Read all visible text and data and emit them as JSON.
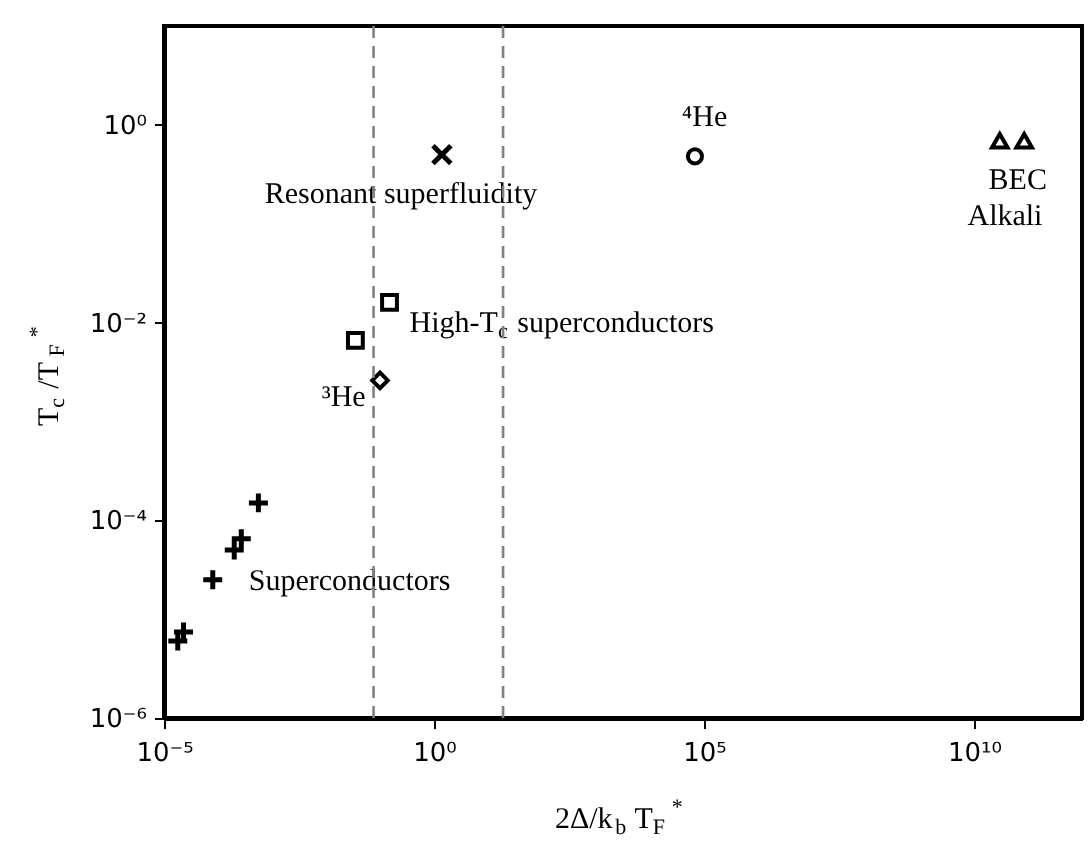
{
  "chart_data": {
    "type": "scatter",
    "xlabel": "2Δ/k$_{b}$T$_{F}$$^{*}$",
    "ylabel": "T$_{c}$/T$_{F}$$^{*}$",
    "log": "xy",
    "grid": false,
    "legend": false,
    "xlim": [
      1e-05,
      1000000000000.0
    ],
    "ylim": [
      1e-06,
      10
    ],
    "xticks": [
      {
        "value": 1e-05,
        "label": "10⁻⁵"
      },
      {
        "value": 1,
        "label": "10⁰"
      },
      {
        "value": 100000.0,
        "label": "10⁵"
      },
      {
        "value": 10000000000.0,
        "label": "10¹⁰"
      }
    ],
    "yticks": [
      {
        "value": 1e-06,
        "label": "10⁻⁶"
      },
      {
        "value": 0.0001,
        "label": "10⁻⁴"
      },
      {
        "value": 0.01,
        "label": "10⁻²"
      },
      {
        "value": 1,
        "label": "10⁰"
      }
    ],
    "series": [
      {
        "name": "Superconductors",
        "color": "#000000",
        "marker": "cross",
        "x": [
          0.00056,
          0.00027,
          0.0002,
          8e-05,
          2.3e-05,
          1.8e-05
        ],
        "values": [
          0.00015,
          6.5e-05,
          5e-05,
          2.5e-05,
          7.4e-06,
          6e-06
        ]
      },
      {
        "name": "High-T$_{c}$ superconductors",
        "color": "#000000",
        "marker": "square",
        "x": [
          0.035,
          0.15
        ],
        "values": [
          0.0066,
          0.016
        ]
      },
      {
        "name": "³He",
        "color": "#000000",
        "marker": "diamond",
        "x": [
          0.1
        ],
        "values": [
          0.0026
        ]
      },
      {
        "name": "Resonant superfluidity",
        "color": "#000000",
        "marker": "x",
        "x": [
          1.4
        ],
        "values": [
          0.5
        ]
      },
      {
        "name": "⁴He",
        "color": "#000000",
        "marker": "circle",
        "x": [
          68000
        ],
        "values": [
          0.48
        ]
      },
      {
        "name": "BEC Alkali",
        "color": "#000000",
        "marker": "triangle",
        "x": [
          30000000000.0,
          85000000000.0
        ],
        "values": [
          0.69,
          0.69
        ]
      }
    ],
    "ref_lines": [
      {
        "axis": "x",
        "value": 0.076,
        "color": "#808080",
        "line_style": "dashed"
      },
      {
        "axis": "x",
        "value": 19,
        "color": "#808080",
        "line_style": "dashed"
      }
    ]
  }
}
